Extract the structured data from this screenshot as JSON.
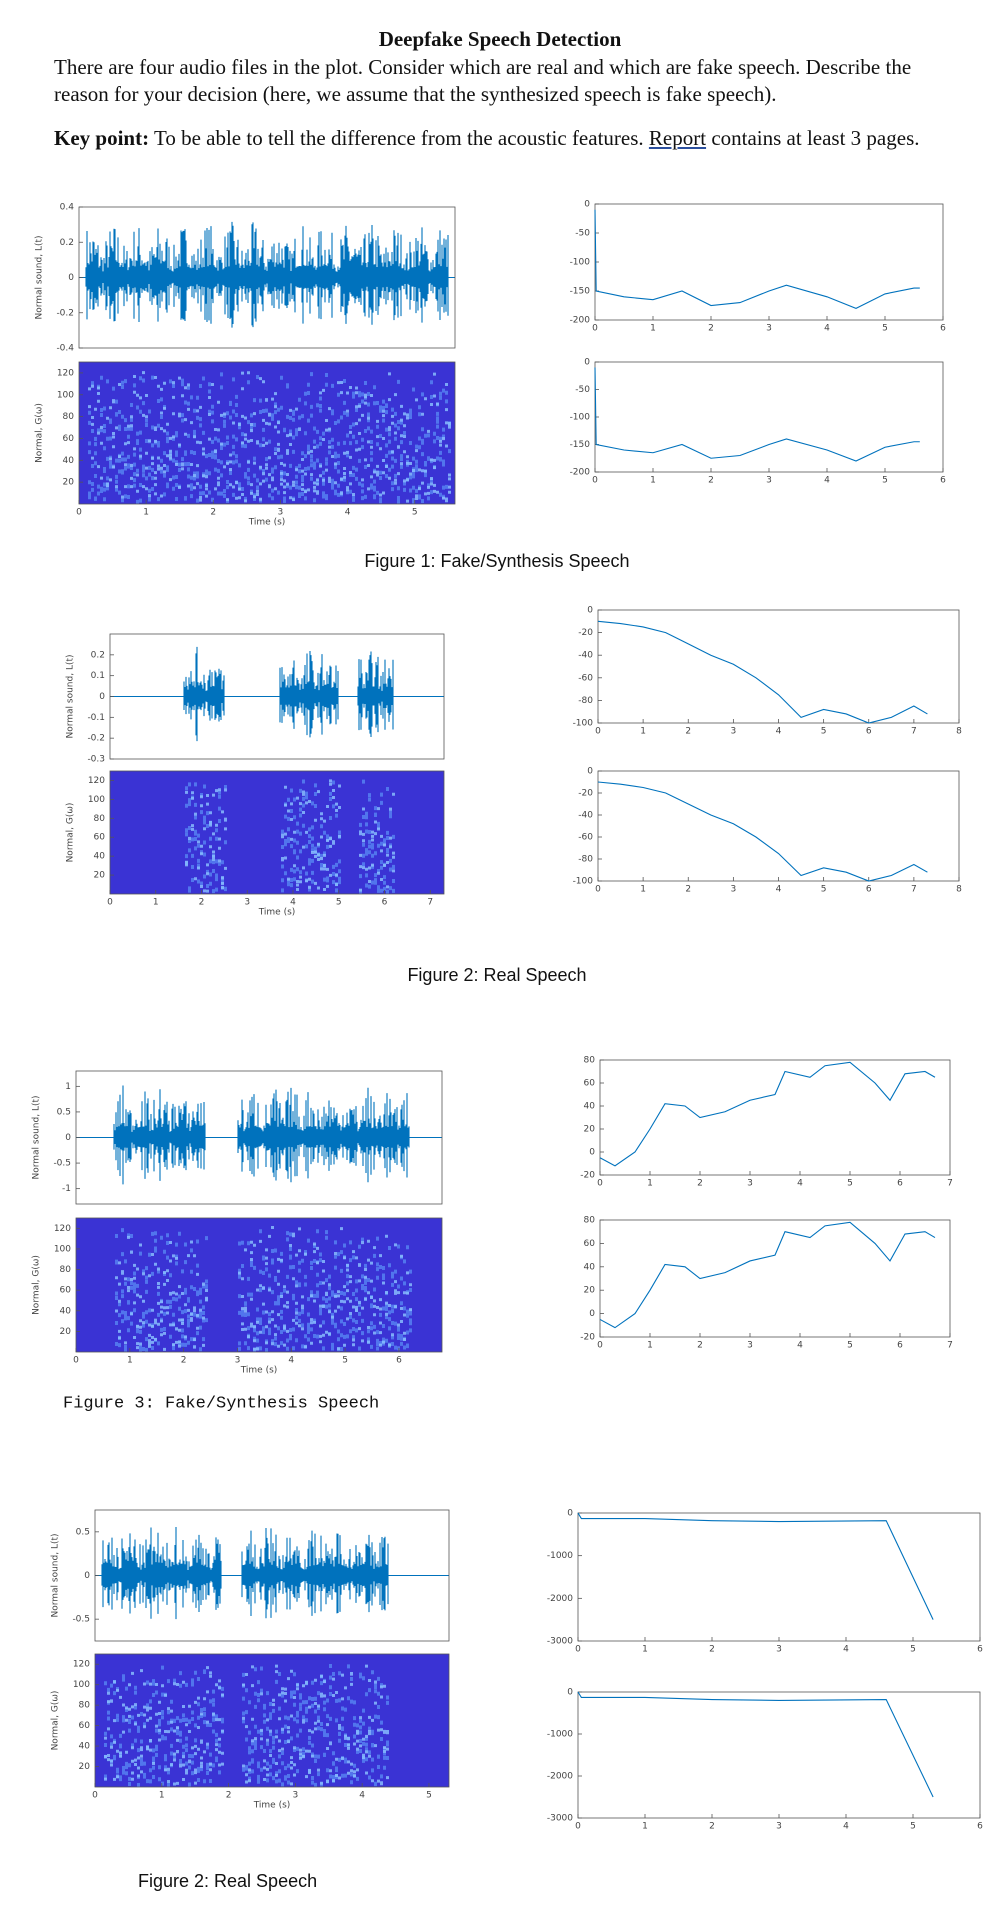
{
  "title": "Deepfake Speech Detection",
  "intro": "There are four audio files in the plot. Consider which are real and which are fake speech. Describe the reason for your decision (here, we assume that the synthesized speech is fake speech).",
  "key_point": {
    "label": "Key point:",
    "text": "To be able to tell the difference from the acoustic features.",
    "link": "Report",
    "text_end": "contains at least 3 pages."
  },
  "line_color": "#0072bd",
  "figures": [
    {
      "caption": "Figure 1: Fake/Synthesis Speech",
      "waveform": {
        "ylabel": "Normal sound, L(t)",
        "ylim": [
          -0.4,
          0.4
        ],
        "yticks": [
          0.4,
          0.2,
          0,
          -0.2,
          -0.4
        ]
      },
      "spectrogram": {
        "ylabel": "Normal, G(ω)",
        "xlabel": "Time (s)",
        "xlim": [
          0,
          5.6
        ],
        "ylim": [
          0,
          130
        ],
        "xticks": [
          0,
          1,
          2,
          3,
          4,
          5
        ],
        "yticks": [
          20,
          40,
          60,
          80,
          100,
          120
        ]
      },
      "contours": [
        {
          "xlim": [
            0,
            6
          ],
          "ylim": [
            -200,
            0
          ],
          "xticks": [
            0,
            1,
            2,
            3,
            4,
            5,
            6
          ],
          "yticks": [
            0,
            -50,
            -100,
            -150,
            -200
          ],
          "x": [
            0,
            0.02,
            0.5,
            1,
            1.5,
            2,
            2.5,
            3,
            3.3,
            4,
            4.5,
            5,
            5.5,
            5.6
          ],
          "values": [
            -10,
            -150,
            -160,
            -165,
            -150,
            -175,
            -170,
            -150,
            -140,
            -160,
            -180,
            -155,
            -145,
            -145
          ]
        },
        {
          "xlim": [
            0,
            6
          ],
          "ylim": [
            -200,
            0
          ],
          "xticks": [
            0,
            1,
            2,
            3,
            4,
            5,
            6
          ],
          "yticks": [
            0,
            -50,
            -100,
            -150,
            -200
          ],
          "x": [
            0,
            0.02,
            0.5,
            1,
            1.5,
            2,
            2.5,
            3,
            3.3,
            4,
            4.5,
            5,
            5.5,
            5.6
          ],
          "values": [
            -10,
            -150,
            -160,
            -165,
            -150,
            -175,
            -170,
            -150,
            -140,
            -160,
            -180,
            -155,
            -145,
            -145
          ]
        }
      ]
    },
    {
      "caption": "Figure 2: Real Speech",
      "waveform": {
        "ylabel": "Normal sound, L(t)",
        "ylim": [
          -0.3,
          0.3
        ],
        "yticks": [
          0.2,
          0.1,
          0,
          -0.1,
          -0.2,
          -0.3
        ]
      },
      "spectrogram": {
        "ylabel": "Normal, G(ω)",
        "xlabel": "Time (s)",
        "xlim": [
          0,
          7.3
        ],
        "ylim": [
          0,
          130
        ],
        "xticks": [
          0,
          1,
          2,
          3,
          4,
          5,
          6,
          7
        ],
        "yticks": [
          20,
          40,
          60,
          80,
          100,
          120
        ]
      },
      "contours": [
        {
          "xlim": [
            0,
            8
          ],
          "ylim": [
            -100,
            0
          ],
          "xticks": [
            0,
            1,
            2,
            3,
            4,
            5,
            6,
            7,
            8
          ],
          "yticks": [
            0,
            -20,
            -40,
            -60,
            -80,
            -100
          ],
          "x": [
            0,
            0.5,
            1,
            1.5,
            2,
            2.5,
            3,
            3.5,
            4,
            4.5,
            5,
            5.5,
            6,
            6.5,
            7,
            7.3
          ],
          "values": [
            -10,
            -12,
            -15,
            -20,
            -30,
            -40,
            -48,
            -60,
            -75,
            -95,
            -88,
            -92,
            -100,
            -95,
            -85,
            -92
          ]
        },
        {
          "xlim": [
            0,
            8
          ],
          "ylim": [
            -100,
            0
          ],
          "xticks": [
            0,
            1,
            2,
            3,
            4,
            5,
            6,
            7,
            8
          ],
          "yticks": [
            0,
            -20,
            -40,
            -60,
            -80,
            -100
          ],
          "x": [
            0,
            0.5,
            1,
            1.5,
            2,
            2.5,
            3,
            3.5,
            4,
            4.5,
            5,
            5.5,
            6,
            6.5,
            7,
            7.3
          ],
          "values": [
            -10,
            -12,
            -15,
            -20,
            -30,
            -40,
            -48,
            -60,
            -75,
            -95,
            -88,
            -92,
            -100,
            -95,
            -85,
            -92
          ]
        }
      ]
    },
    {
      "caption": "Figure 3: Fake/Synthesis Speech",
      "waveform": {
        "ylabel": "Normal sound, L(t)",
        "ylim": [
          -1.3,
          1.3
        ],
        "yticks": [
          1,
          0.5,
          0,
          -0.5,
          -1
        ]
      },
      "spectrogram": {
        "ylabel": "Normal, G(ω)",
        "xlabel": "Time (s)",
        "xlim": [
          0,
          6.8
        ],
        "ylim": [
          0,
          130
        ],
        "xticks": [
          0,
          1,
          2,
          3,
          4,
          5,
          6
        ],
        "yticks": [
          20,
          40,
          60,
          80,
          100,
          120
        ]
      },
      "contours": [
        {
          "xlim": [
            0,
            7
          ],
          "ylim": [
            -20,
            80
          ],
          "xticks": [
            0,
            1,
            2,
            3,
            4,
            5,
            6,
            7
          ],
          "yticks": [
            80,
            60,
            40,
            20,
            0,
            -20
          ],
          "x": [
            0,
            0.3,
            0.7,
            1,
            1.3,
            1.7,
            2,
            2.5,
            3,
            3.5,
            3.7,
            4.2,
            4.5,
            5,
            5.5,
            5.8,
            6.1,
            6.5,
            6.7
          ],
          "values": [
            -5,
            -12,
            0,
            20,
            42,
            40,
            30,
            35,
            45,
            50,
            70,
            65,
            75,
            78,
            60,
            45,
            68,
            70,
            65
          ]
        },
        {
          "xlim": [
            0,
            7
          ],
          "ylim": [
            -20,
            80
          ],
          "xticks": [
            0,
            1,
            2,
            3,
            4,
            5,
            6,
            7
          ],
          "yticks": [
            80,
            60,
            40,
            20,
            0,
            -20
          ],
          "x": [
            0,
            0.3,
            0.7,
            1,
            1.3,
            1.7,
            2,
            2.5,
            3,
            3.5,
            3.7,
            4.2,
            4.5,
            5,
            5.5,
            5.8,
            6.1,
            6.5,
            6.7
          ],
          "values": [
            -5,
            -12,
            0,
            20,
            42,
            40,
            30,
            35,
            45,
            50,
            70,
            65,
            75,
            78,
            60,
            45,
            68,
            70,
            65
          ]
        }
      ]
    },
    {
      "caption": "Figure 2: Real Speech",
      "waveform": {
        "ylabel": "Normal sound, L(t)",
        "ylim": [
          -0.75,
          0.75
        ],
        "yticks": [
          0.5,
          0,
          -0.5
        ]
      },
      "spectrogram": {
        "ylabel": "Normal, G(ω)",
        "xlabel": "Time (s)",
        "xlim": [
          0,
          5.3
        ],
        "ylim": [
          0,
          130
        ],
        "xticks": [
          0,
          1,
          2,
          3,
          4,
          5
        ],
        "yticks": [
          20,
          40,
          60,
          80,
          100,
          120
        ]
      },
      "contours": [
        {
          "xlim": [
            0,
            6
          ],
          "ylim": [
            -3000,
            0
          ],
          "xticks": [
            0,
            1,
            2,
            3,
            4,
            5,
            6
          ],
          "yticks": [
            0,
            -1000,
            -2000,
            -3000
          ],
          "x": [
            0,
            0.05,
            1,
            2,
            3,
            4.6,
            5.3
          ],
          "values": [
            0,
            -130,
            -130,
            -180,
            -200,
            -180,
            -2500
          ]
        },
        {
          "xlim": [
            0,
            6
          ],
          "ylim": [
            -3000,
            0
          ],
          "xticks": [
            0,
            1,
            2,
            3,
            4,
            5,
            6
          ],
          "yticks": [
            0,
            -1000,
            -2000,
            -3000
          ],
          "x": [
            0,
            0.05,
            1,
            2,
            3,
            4.6,
            5.3
          ],
          "values": [
            0,
            -130,
            -130,
            -180,
            -200,
            -180,
            -2500
          ]
        }
      ]
    }
  ]
}
